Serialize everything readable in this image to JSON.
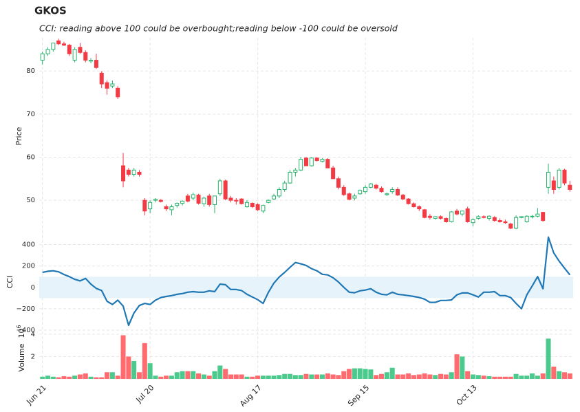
{
  "chart_data": [
    {
      "type": "candlestick",
      "title": "GKOS",
      "subtitle": "CCI: reading above 100 could be overbought;reading below -100 could be oversold",
      "ylabel": "Price",
      "ylim": [
        42.2,
        87.7
      ],
      "yticks": [
        50,
        60,
        70,
        80
      ],
      "grid": true,
      "up_color": "#26b36b",
      "down_color": "#f23b45",
      "open": [
        82.5,
        84,
        85,
        87,
        86.3,
        86,
        82.5,
        85.5,
        84.3,
        82.3,
        82.5,
        79.5,
        77.3,
        76.5,
        76,
        58,
        57,
        56,
        56.5,
        50,
        48,
        50,
        50,
        48.5,
        47.8,
        48.8,
        49.3,
        51,
        50.5,
        51.2,
        49.2,
        51,
        49,
        51.5,
        54.5,
        50.5,
        50,
        50.3,
        48.5,
        49.3,
        49,
        47.5,
        49.5,
        50.3,
        51,
        52.5,
        54,
        56.5,
        57,
        59.8,
        58,
        59.8,
        59,
        59.5,
        57.5,
        55,
        53,
        51.5,
        50.5,
        51.5,
        52,
        53,
        53.5,
        52.8,
        51.3,
        52,
        52.5,
        51.2,
        50.3,
        49.2,
        48.5,
        47.8,
        46.3,
        45.8,
        46.2,
        45.8,
        45,
        47.5,
        46.8,
        48,
        44.8,
        45.8,
        46.2,
        45.8,
        46,
        45.3,
        45,
        44.5,
        43.5,
        46,
        45,
        46.2,
        46.3,
        47.2,
        53,
        54.5,
        53,
        57,
        53.5
      ],
      "high": [
        84.5,
        85.5,
        86.5,
        87.5,
        86.8,
        86.3,
        85.5,
        86.5,
        84.8,
        83,
        84,
        80,
        77.8,
        77.8,
        76.5,
        61,
        57.5,
        57.5,
        57,
        50.5,
        50,
        50.5,
        50.3,
        49,
        49,
        49.5,
        50,
        51.5,
        51.8,
        51.5,
        50.8,
        51.5,
        51,
        55,
        54.8,
        51,
        50.5,
        50.5,
        50,
        49.5,
        49.3,
        49,
        50.2,
        51.5,
        53,
        54.5,
        57,
        57.5,
        60,
        60,
        60,
        60,
        59.8,
        59.8,
        58,
        55.5,
        53.5,
        51.8,
        51.5,
        52.5,
        53.5,
        54,
        53.8,
        53.2,
        51.8,
        53,
        53,
        51.5,
        50.5,
        49.5,
        48.8,
        48,
        46.8,
        46.3,
        46.5,
        46,
        47.5,
        48,
        47.5,
        48.5,
        45.8,
        46.5,
        46.5,
        46.5,
        46.3,
        45.8,
        45.5,
        44.8,
        46.5,
        46.3,
        46.5,
        46.6,
        48.2,
        47.3,
        58.5,
        55.5,
        57.5,
        57.3,
        54.5
      ],
      "low": [
        81.5,
        83.5,
        84.5,
        86,
        85.8,
        83.5,
        82,
        84,
        82,
        81.8,
        80.5,
        76,
        74.5,
        76,
        73.5,
        53,
        55.5,
        55.5,
        55.5,
        46.5,
        47,
        49.5,
        49.5,
        47.5,
        46.5,
        48.3,
        48.8,
        49.5,
        50,
        49,
        48.5,
        48.5,
        47,
        51,
        50,
        49.5,
        49,
        49,
        48.3,
        48.2,
        47.5,
        47,
        49.3,
        50,
        50.5,
        52,
        53.8,
        55.5,
        56.8,
        58,
        57.8,
        59,
        58.8,
        57.5,
        55,
        52.5,
        51,
        50,
        50,
        51.3,
        51.5,
        52.8,
        52.5,
        51.8,
        51,
        51.5,
        51,
        50,
        49,
        48.3,
        47.5,
        45.8,
        45.5,
        45.5,
        45.5,
        44.8,
        44.8,
        46.5,
        46.3,
        44.8,
        44,
        45.5,
        45.8,
        45.3,
        45,
        44.8,
        44.5,
        43.3,
        43.3,
        45.8,
        44.8,
        45.8,
        46,
        45,
        51.5,
        51.5,
        52.5,
        53.5,
        52
      ],
      "close": [
        84,
        85,
        86.5,
        86.3,
        86,
        84,
        85,
        84.3,
        82.5,
        82.5,
        80.8,
        77,
        76,
        77,
        74,
        54.5,
        56,
        57,
        56,
        47.5,
        49.5,
        50.2,
        49.7,
        48,
        48.5,
        49.3,
        49.8,
        49.8,
        51.3,
        49.3,
        50.5,
        49,
        51,
        54.5,
        50.3,
        50,
        49.8,
        49.2,
        49.5,
        48.5,
        47.8,
        48.8,
        50,
        51,
        52.5,
        54,
        56.5,
        57,
        59.5,
        58,
        59.8,
        59.2,
        59.5,
        57.5,
        55,
        53,
        51.3,
        50.2,
        51,
        52.3,
        53,
        53.8,
        52.8,
        52,
        51.5,
        52.5,
        51.2,
        50.3,
        49.2,
        48.5,
        48,
        46,
        46,
        46.2,
        45.8,
        45,
        47.3,
        46.8,
        47.5,
        45,
        45.5,
        46.2,
        46,
        46.3,
        45.3,
        45,
        44.8,
        43.5,
        46,
        46.2,
        46.3,
        46.3,
        46.8,
        45.3,
        56.5,
        52.5,
        57,
        54,
        52.5
      ]
    },
    {
      "type": "line",
      "ylabel": "CCI",
      "ylim": [
        -400,
        500
      ],
      "yticks": [
        {
          "value": -400,
          "label": "−400"
        },
        {
          "value": -200,
          "label": "−200"
        },
        0,
        200,
        400
      ],
      "grid": true,
      "overbought": 100,
      "oversold": -100,
      "band_color": "#e6f3fb",
      "series": [
        {
          "name": "CCI",
          "color": "#1f77b4",
          "values": [
            140,
            150,
            155,
            145,
            120,
            100,
            75,
            60,
            84,
            30,
            -10,
            -30,
            -130,
            -160,
            -120,
            -175,
            -355,
            -240,
            -170,
            -150,
            -160,
            -120,
            -95,
            -85,
            -77,
            -65,
            -58,
            -45,
            -40,
            -45,
            -45,
            -32,
            -40,
            30,
            25,
            -20,
            -20,
            -30,
            -65,
            -90,
            -115,
            -150,
            -45,
            40,
            97,
            140,
            187,
            232,
            220,
            205,
            175,
            155,
            122,
            116,
            90,
            50,
            0,
            -45,
            -50,
            -32,
            -25,
            -13,
            -45,
            -65,
            -70,
            -45,
            -65,
            -70,
            -77,
            -85,
            -95,
            -110,
            -140,
            -140,
            -122,
            -122,
            -118,
            -70,
            -52,
            -52,
            -70,
            -90,
            -45,
            -45,
            -40,
            -77,
            -77,
            -95,
            -150,
            -200,
            -70,
            13,
            100,
            -13,
            470,
            322,
            245,
            180,
            116
          ]
        }
      ]
    },
    {
      "type": "bar",
      "ylabel": "Volume",
      "offset_base": "10",
      "offset_exponent": "6",
      "ylim": [
        0,
        4.05
      ],
      "yticks": [
        2,
        4
      ],
      "grid": true,
      "xlim": [
        -0.6,
        98.6
      ],
      "categories": [
        "Jun 21",
        null,
        null,
        null,
        null,
        null,
        null,
        null,
        null,
        null,
        null,
        null,
        null,
        null,
        null,
        null,
        null,
        null,
        null,
        null,
        "Jul 20",
        null,
        null,
        null,
        null,
        null,
        null,
        null,
        null,
        null,
        null,
        null,
        null,
        null,
        null,
        null,
        null,
        null,
        null,
        null,
        "Aug 17",
        null,
        null,
        null,
        null,
        null,
        null,
        null,
        null,
        null,
        null,
        null,
        null,
        null,
        null,
        null,
        null,
        null,
        null,
        null,
        "Sep 15",
        null,
        null,
        null,
        null,
        null,
        null,
        null,
        null,
        null,
        null,
        null,
        null,
        null,
        null,
        null,
        null,
        null,
        null,
        null,
        "Oct 13",
        null,
        null,
        null,
        null,
        null,
        null,
        null,
        null,
        null,
        null,
        null,
        null,
        null,
        null,
        null,
        null,
        null,
        null
      ],
      "up_color": "#4cc98c",
      "down_color": "#ff6b6e",
      "values": [
        0.2,
        0.3,
        0.2,
        0.15,
        0.25,
        0.2,
        0.3,
        0.4,
        0.5,
        0.2,
        0.15,
        0.15,
        0.6,
        0.6,
        0.3,
        3.9,
        2.0,
        1.6,
        0.6,
        3.2,
        1.4,
        0.3,
        0.2,
        0.3,
        0.3,
        0.6,
        0.7,
        0.7,
        0.7,
        0.5,
        0.4,
        0.3,
        0.7,
        1.2,
        0.9,
        0.4,
        0.4,
        0.4,
        0.2,
        0.2,
        0.3,
        0.3,
        0.3,
        0.3,
        0.35,
        0.45,
        0.45,
        0.35,
        0.35,
        0.45,
        0.4,
        0.4,
        0.4,
        0.5,
        0.4,
        0.35,
        0.7,
        0.9,
        0.95,
        0.95,
        0.9,
        0.85,
        0.35,
        0.45,
        0.6,
        1.0,
        0.4,
        0.4,
        0.5,
        0.35,
        0.4,
        0.5,
        0.4,
        0.35,
        0.45,
        0.4,
        0.6,
        2.2,
        2.0,
        0.7,
        0.4,
        0.35,
        0.3,
        0.25,
        0.2,
        0.2,
        0.2,
        0.2,
        0.45,
        0.3,
        0.3,
        0.5,
        0.3,
        0.5,
        3.6,
        1.1,
        0.7,
        0.6,
        0.5
      ]
    }
  ]
}
